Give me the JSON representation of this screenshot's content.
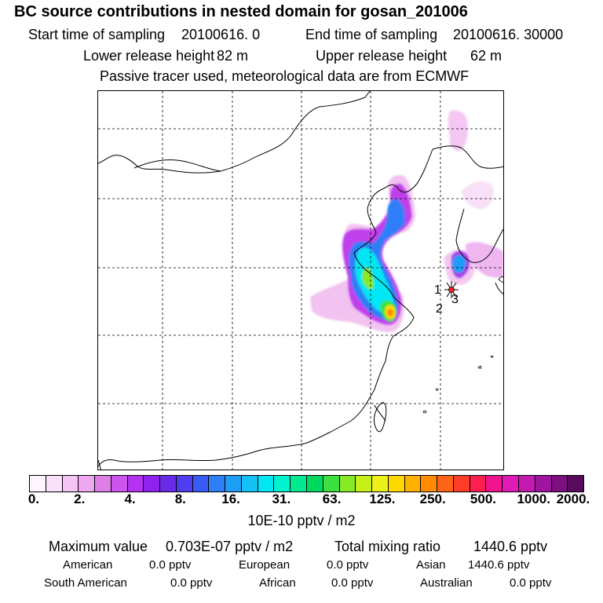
{
  "header": {
    "title": "BC  source contributions in nested domain for gosan_201006",
    "start_time_label": "Start time of sampling",
    "start_time_value": "20100616.     0",
    "end_time_label": "End time of sampling",
    "end_time_value": "20100616. 30000",
    "lower_height_label": "Lower release height",
    "lower_height_value": "82 m",
    "upper_height_label": "Upper release height",
    "upper_height_value": "62 m",
    "note": "Passive tracer used, meteorological data are from ECMWF"
  },
  "map": {
    "receptor_labels": [
      "1",
      "2",
      "3"
    ]
  },
  "colorbar": {
    "colors": [
      "#fff5ff",
      "#fbe0fb",
      "#f4c4f4",
      "#eda8ef",
      "#e07ee8",
      "#cc55ee",
      "#b533f0",
      "#8f22ee",
      "#6b2ae8",
      "#4f3df0",
      "#3a5af5",
      "#2d7ff7",
      "#1e9ef7",
      "#14c0f5",
      "#00e6f2",
      "#00f2cf",
      "#00e890",
      "#00d860",
      "#3ce040",
      "#86ea26",
      "#c6f01a",
      "#eef01a",
      "#ffd800",
      "#ffb000",
      "#ff8c00",
      "#ff6418",
      "#ff3c28",
      "#ff1e50",
      "#f2148e",
      "#e01ab4",
      "#c41ab0",
      "#a0159e",
      "#7d0f80",
      "#5a0a5c"
    ],
    "tick_labels": [
      "0.",
      "2.",
      "4.",
      "8.",
      "16.",
      "31.",
      "63.",
      "125.",
      "250.",
      "500.",
      "1000.",
      "2000."
    ],
    "unit": "10E-10 pptv / m2"
  },
  "summary": {
    "max_label": "Maximum value",
    "max_value": "0.703E-07 pptv / m2",
    "total_label": "Total mixing ratio",
    "total_value": "1440.6 pptv",
    "sources": [
      {
        "name": "American",
        "value": "0.0 pptv"
      },
      {
        "name": "European",
        "value": "0.0 pptv"
      },
      {
        "name": "Asian",
        "value": "1440.6 pptv"
      },
      {
        "name": "South American",
        "value": "0.0 pptv"
      },
      {
        "name": "African",
        "value": "0.0 pptv"
      },
      {
        "name": "Australian",
        "value": "0.0 pptv"
      }
    ]
  }
}
